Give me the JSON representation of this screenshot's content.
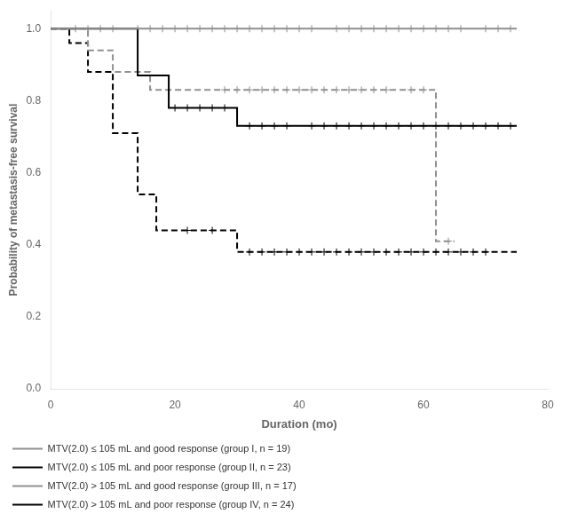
{
  "chart_data": {
    "type": "line",
    "xlabel": "Duration (mo)",
    "ylabel": "Probability of metastasis-free survival",
    "xlim": [
      0,
      80
    ],
    "ylim": [
      0.0,
      1.05
    ],
    "xticks": [
      0,
      20,
      40,
      60,
      80
    ],
    "yticks": [
      {
        "value": 0.0,
        "label": "0.0"
      },
      0.2,
      0.4,
      0.6,
      0.8,
      {
        "value": 1.0,
        "label": "1.0"
      }
    ],
    "grid": false,
    "legend": "lower left",
    "series": [
      {
        "name": "MTV(2.0) ≤ 105 mL and good response (group I, n = 19)",
        "color": "#909090",
        "line_style": "solid",
        "x": [
          0,
          75
        ],
        "values": [
          1.0,
          1.0
        ],
        "censor_x": [
          4,
          6,
          8,
          10,
          14,
          16,
          18,
          20,
          22,
          24,
          26,
          28,
          30,
          32,
          34,
          36,
          38,
          40,
          42,
          46,
          48,
          50,
          52,
          54,
          56,
          58,
          60,
          62,
          64,
          66,
          70,
          72,
          74
        ],
        "censor_y": [
          1.0,
          1.0,
          1.0,
          1.0,
          1.0,
          1.0,
          1.0,
          1.0,
          1.0,
          1.0,
          1.0,
          1.0,
          1.0,
          1.0,
          1.0,
          1.0,
          1.0,
          1.0,
          1.0,
          1.0,
          1.0,
          1.0,
          1.0,
          1.0,
          1.0,
          1.0,
          1.0,
          1.0,
          1.0,
          1.0,
          1.0,
          1.0,
          1.0
        ]
      },
      {
        "name": "MTV(2.0) ≤ 105 mL and poor response (group II, n = 23)",
        "color": "#000000",
        "line_style": "solid",
        "x": [
          0,
          8,
          14,
          14,
          19,
          19,
          30,
          30,
          75
        ],
        "values": [
          1.0,
          1.0,
          0.87,
          0.87,
          0.78,
          0.78,
          0.73,
          0.73,
          0.73
        ],
        "censor_x": [
          20,
          22,
          24,
          26,
          28,
          32,
          34,
          36,
          38,
          42,
          44,
          46,
          48,
          50,
          52,
          54,
          56,
          58,
          60,
          62,
          64,
          66,
          68,
          70,
          72,
          74
        ],
        "censor_y": [
          0.78,
          0.78,
          0.78,
          0.78,
          0.78,
          0.73,
          0.73,
          0.73,
          0.73,
          0.73,
          0.73,
          0.73,
          0.73,
          0.73,
          0.73,
          0.73,
          0.73,
          0.73,
          0.73,
          0.73,
          0.73,
          0.73,
          0.73,
          0.73,
          0.73,
          0.73
        ]
      },
      {
        "name": "MTV(2.0) > 105 mL and good response (group III, n = 17)",
        "color": "#909090",
        "line_style": "dashed",
        "x": [
          0,
          6,
          6,
          10,
          10,
          16,
          16,
          23,
          23,
          62,
          62,
          65
        ],
        "values": [
          1.0,
          1.0,
          0.94,
          0.94,
          0.88,
          0.88,
          0.83,
          0.83,
          0.83,
          0.83,
          0.41,
          0.41
        ],
        "censor_x": [
          28,
          30,
          32,
          34,
          36,
          38,
          40,
          42,
          44,
          46,
          48,
          50,
          52,
          54,
          58,
          60,
          64
        ],
        "censor_y": [
          0.83,
          0.83,
          0.83,
          0.83,
          0.83,
          0.83,
          0.83,
          0.83,
          0.83,
          0.83,
          0.83,
          0.83,
          0.83,
          0.83,
          0.83,
          0.83,
          0.41
        ]
      },
      {
        "name": "MTV(2.0) > 105 mL and poor response (group IV, n = 24)",
        "color": "#000000",
        "line_style": "dashed",
        "x": [
          0,
          3,
          3,
          6,
          6,
          10,
          10,
          14,
          14,
          17,
          17,
          20,
          20,
          30,
          30,
          75
        ],
        "values": [
          1.0,
          1.0,
          0.96,
          0.96,
          0.88,
          0.88,
          0.71,
          0.71,
          0.54,
          0.54,
          0.44,
          0.44,
          0.44,
          0.38,
          0.38,
          0.38
        ],
        "censor_x": [
          22,
          26,
          32,
          34,
          36,
          38,
          40,
          42,
          44,
          46,
          48,
          50,
          52,
          54,
          56,
          58,
          60,
          62,
          64,
          66,
          68,
          70
        ],
        "censor_y": [
          0.44,
          0.44,
          0.38,
          0.38,
          0.38,
          0.38,
          0.38,
          0.38,
          0.38,
          0.38,
          0.38,
          0.38,
          0.38,
          0.38,
          0.38,
          0.38,
          0.38,
          0.38,
          0.38,
          0.38,
          0.38,
          0.38
        ]
      }
    ]
  }
}
